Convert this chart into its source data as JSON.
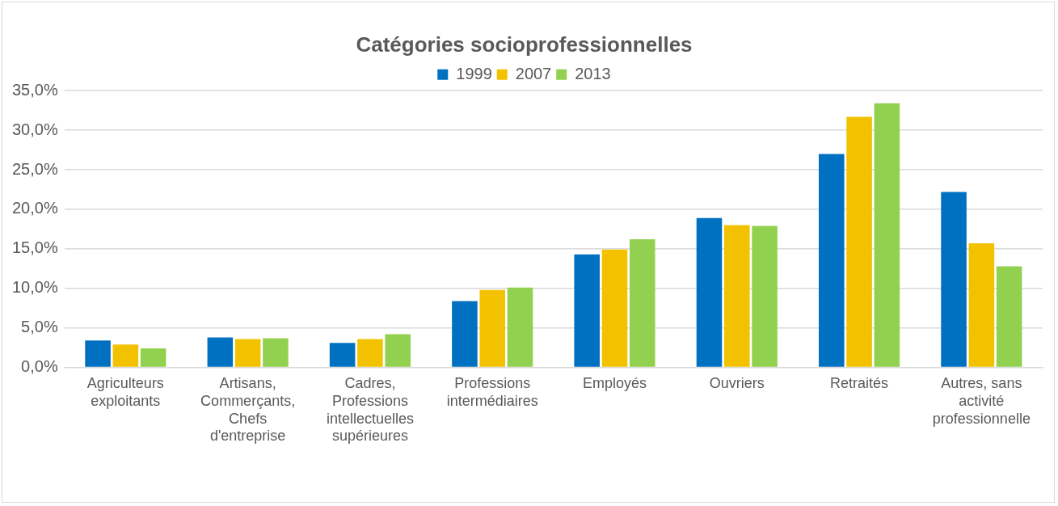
{
  "chart_data": {
    "type": "bar",
    "title": "Catégories socioprofessionnelles",
    "categories": [
      "Agriculteurs exploitants",
      "Artisans, Commerçants, Chefs d'entreprise",
      "Cadres, Professions intellectuelles supérieures",
      "Professions intermédiaires",
      "Employés",
      "Ouvriers",
      "Retraités",
      "Autres, sans activité professionnelle"
    ],
    "series": [
      {
        "name": "1999",
        "color": "#0070c0",
        "values": [
          3.4,
          3.8,
          3.1,
          8.4,
          14.3,
          18.9,
          27.0,
          22.2
        ]
      },
      {
        "name": "2007",
        "color": "#f2c200",
        "values": [
          2.9,
          3.6,
          3.6,
          9.8,
          14.9,
          18.0,
          31.7,
          15.7
        ]
      },
      {
        "name": "2013",
        "color": "#92d050",
        "values": [
          2.4,
          3.7,
          4.2,
          10.1,
          16.2,
          17.9,
          33.4,
          12.8
        ]
      }
    ],
    "ylim": [
      0,
      35
    ],
    "yticks": [
      {
        "value": 0,
        "label": "0,0%"
      },
      {
        "value": 5,
        "label": "5,0%"
      },
      {
        "value": 10,
        "label": "10,0%"
      },
      {
        "value": 15,
        "label": "15,0%"
      },
      {
        "value": 20,
        "label": "20,0%"
      },
      {
        "value": 25,
        "label": "25,0%"
      },
      {
        "value": 30,
        "label": "30,0%"
      },
      {
        "value": 35,
        "label": "35,0%"
      }
    ],
    "grid": "y",
    "legend": "top"
  }
}
